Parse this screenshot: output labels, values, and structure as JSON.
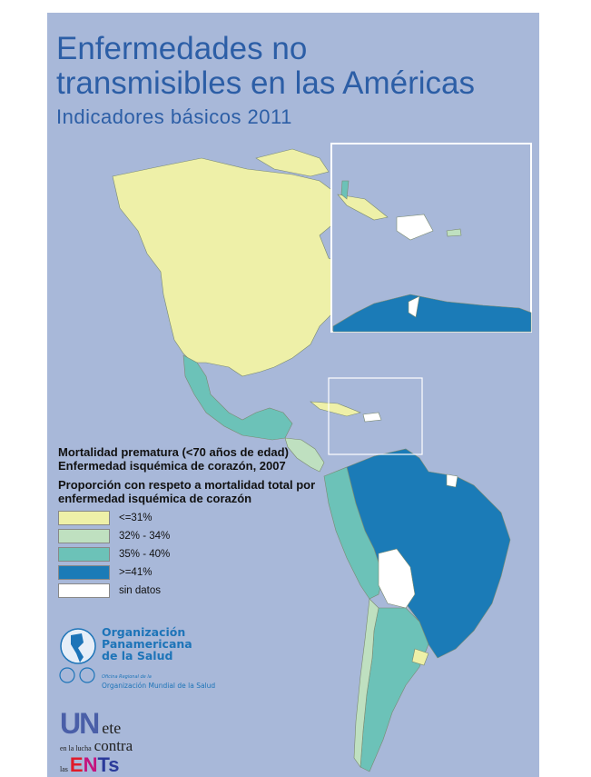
{
  "header": {
    "title_line1": "Enfermedades no",
    "title_line2": "transmisibles en las Américas",
    "subtitle": "Indicadores básicos 2011"
  },
  "legend": {
    "heading1": "Mortalidad prematura (<70 años de edad)",
    "heading2": "Enfermedad isquémica de corazón, 2007",
    "heading3": "Proporción con respeto a mortalidad total por",
    "heading4": "enfermedad isquémica de corazón",
    "items": [
      {
        "label": "<=31%",
        "color": "#eef0a8"
      },
      {
        "label": "32% - 34%",
        "color": "#bfe0c0"
      },
      {
        "label": "35% - 40%",
        "color": "#6cc2b8"
      },
      {
        "label": ">=41%",
        "color": "#1b7bb7"
      },
      {
        "label": "sin datos",
        "color": "#ffffff"
      }
    ]
  },
  "logos": {
    "ops_name1": "Organización",
    "ops_name2": "Panamericana",
    "ops_name3": "de la Salud",
    "ops_sub1": "Oficina Regional de la",
    "ops_sub2": "Organización Mundial de la Salud",
    "campaign": "UNete en la lucha contra las ENTs"
  },
  "colors": {
    "background": "#a8b8d9",
    "title": "#2c5ea6"
  }
}
